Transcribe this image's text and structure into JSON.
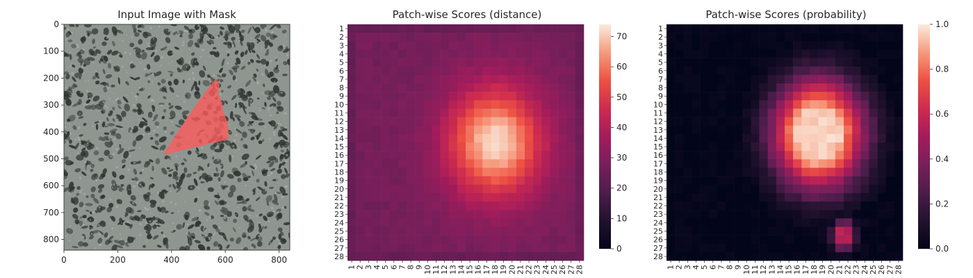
{
  "chart_data": [
    {
      "type": "image",
      "title": "Input Image with Mask",
      "xlim": [
        0,
        840
      ],
      "ylim": [
        840,
        0
      ],
      "xticks": [
        0,
        200,
        400,
        600,
        800
      ],
      "yticks": [
        0,
        100,
        200,
        300,
        400,
        500,
        600,
        700,
        800
      ],
      "background_color": "#8f9690",
      "spot_color": "#2f3532",
      "mask": {
        "color": "#ff5a5a",
        "polygon": [
          [
            565,
            200
          ],
          [
            578,
            226
          ],
          [
            574,
            260
          ],
          [
            588,
            290
          ],
          [
            594,
            330
          ],
          [
            608,
            362
          ],
          [
            612,
            402
          ],
          [
            610,
            428
          ],
          [
            368,
            486
          ],
          [
            410,
            420
          ],
          [
            470,
            330
          ],
          [
            520,
            260
          ]
        ]
      }
    },
    {
      "type": "heatmap",
      "title": "Patch-wise Scores (distance)",
      "xlabels": [
        "1",
        "2",
        "3",
        "4",
        "5",
        "6",
        "7",
        "8",
        "9",
        "10",
        "11",
        "12",
        "13",
        "14",
        "15",
        "16",
        "17",
        "18",
        "19",
        "20",
        "21",
        "22",
        "23",
        "24",
        "25",
        "26",
        "27",
        "28"
      ],
      "ylabels": [
        "1",
        "2",
        "3",
        "4",
        "5",
        "6",
        "7",
        "8",
        "9",
        "10",
        "11",
        "12",
        "13",
        "14",
        "15",
        "16",
        "17",
        "18",
        "19",
        "20",
        "21",
        "22",
        "23",
        "24",
        "25",
        "26",
        "27",
        "28"
      ],
      "colorbar_ticks": [
        0,
        10,
        20,
        30,
        40,
        50,
        60,
        70
      ],
      "vmin": 0,
      "vmax": 74,
      "blob": {
        "center_col": 18.0,
        "center_row": 14.5,
        "sigma_x": 3.6,
        "sigma_y": 4.2,
        "peak": 72,
        "base": 27
      },
      "colormap": "rocket"
    },
    {
      "type": "heatmap",
      "title": "Patch-wise Scores (probability)",
      "xlabels": [
        "1",
        "2",
        "3",
        "4",
        "5",
        "6",
        "7",
        "8",
        "9",
        "10",
        "11",
        "12",
        "13",
        "14",
        "15",
        "16",
        "17",
        "18",
        "19",
        "20",
        "21",
        "22",
        "23",
        "24",
        "25",
        "26",
        "27",
        "28"
      ],
      "ylabels": [
        "1",
        "2",
        "3",
        "4",
        "5",
        "6",
        "7",
        "8",
        "9",
        "10",
        "11",
        "12",
        "13",
        "14",
        "15",
        "16",
        "17",
        "18",
        "19",
        "20",
        "21",
        "22",
        "23",
        "24",
        "25",
        "26",
        "27",
        "28"
      ],
      "colorbar_ticks": [
        "0.0",
        "0.2",
        "0.4",
        "0.6",
        "0.8",
        "1.0"
      ],
      "vmin": 0,
      "vmax": 1,
      "blob": {
        "center_col": 18.5,
        "center_row": 13.5,
        "sigma_x": 4.0,
        "sigma_y": 4.8,
        "peak": 1.0,
        "base": 0.0
      },
      "secondary_blob": {
        "center_col": 21.5,
        "center_row": 25.5,
        "amplitude": 0.7
      },
      "colormap": "rocket"
    }
  ]
}
